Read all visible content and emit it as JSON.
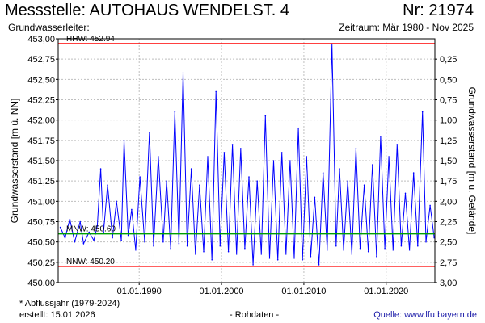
{
  "header": {
    "title": "Messstelle: AUTOHAUS WENDELST. 4",
    "number": "Nr: 21974",
    "aquifer_label": "Grundwasserleiter:",
    "period": "Zeitraum: Mär 1980 - Nov 2025"
  },
  "footer": {
    "footnote": "* Abflussjahr (1979-2024)",
    "created": "erstellt:  15.01.2026",
    "rawdata": "- Rohdaten -",
    "source": "Quelle:  www.lfu.bayern.de"
  },
  "colors": {
    "series": "#0000ff",
    "hhw": "#ff0000",
    "nnw": "#ff0000",
    "mnw": "#00a000",
    "grid": "#bfbfbf"
  },
  "chart_data": {
    "type": "line",
    "ylabel_left": "Grundwasserstand [m ü. NN]",
    "ylabel_right": "Grundwasserstand [m u. Gelände]",
    "ylim": [
      450.0,
      453.0
    ],
    "xlim": [
      "1980-03-01",
      "2025-11-30"
    ],
    "left_ticks": [
      "450,00",
      "450,25",
      "450,50",
      "450,75",
      "451,00",
      "451,25",
      "451,50",
      "451,75",
      "452,00",
      "452,25",
      "452,50",
      "452,75",
      "453,00"
    ],
    "right_ticks": [
      "3,00",
      "2,75",
      "2,50",
      "2,25",
      "2,00",
      "1,75",
      "1,50",
      "1,25",
      "1,00",
      "0,75",
      "0,50",
      "0,25"
    ],
    "x_ticks": [
      {
        "label": "01.01.1990",
        "date": "1990-01-01"
      },
      {
        "label": "01.01.2000",
        "date": "2000-01-01"
      },
      {
        "label": "01.01.2010",
        "date": "2010-01-01"
      },
      {
        "label": "01.01.2020",
        "date": "2020-01-01"
      }
    ],
    "reference_lines": [
      {
        "label": "HHW: 452.94",
        "value": 452.94
      },
      {
        "label": "MNW: 450.60",
        "value": 450.6
      },
      {
        "label": "NNW: 450.20",
        "value": 450.2
      }
    ],
    "grid": true,
    "series": [
      {
        "values": [
          [
            "1980-06-01",
            450.68
          ],
          [
            "1981-01-01",
            450.55
          ],
          [
            "1981-08-01",
            450.78
          ],
          [
            "1982-03-01",
            450.5
          ],
          [
            "1982-11-01",
            450.75
          ],
          [
            "1983-04-01",
            450.48
          ],
          [
            "1983-12-01",
            450.62
          ],
          [
            "1984-07-01",
            450.52
          ],
          [
            "1984-12-01",
            450.7
          ],
          [
            "1985-05-01",
            451.4
          ],
          [
            "1985-09-01",
            450.62
          ],
          [
            "1986-03-01",
            451.2
          ],
          [
            "1986-10-01",
            450.55
          ],
          [
            "1987-04-01",
            451.0
          ],
          [
            "1987-11-01",
            450.52
          ],
          [
            "1988-03-01",
            451.75
          ],
          [
            "1988-09-01",
            450.58
          ],
          [
            "1989-02-01",
            450.9
          ],
          [
            "1989-08-01",
            450.4
          ],
          [
            "1990-02-01",
            451.3
          ],
          [
            "1990-09-01",
            450.5
          ],
          [
            "1991-04-01",
            451.85
          ],
          [
            "1991-10-01",
            450.45
          ],
          [
            "1992-05-01",
            451.55
          ],
          [
            "1992-12-01",
            450.5
          ],
          [
            "1993-05-01",
            451.25
          ],
          [
            "1993-11-01",
            450.42
          ],
          [
            "1994-05-01",
            452.1
          ],
          [
            "1994-11-01",
            450.48
          ],
          [
            "1995-05-01",
            452.58
          ],
          [
            "1995-11-01",
            450.45
          ],
          [
            "1996-05-01",
            451.4
          ],
          [
            "1996-11-01",
            450.35
          ],
          [
            "1997-05-01",
            451.2
          ],
          [
            "1997-11-01",
            450.38
          ],
          [
            "1998-05-01",
            451.55
          ],
          [
            "1998-11-01",
            450.28
          ],
          [
            "1999-05-01",
            452.35
          ],
          [
            "1999-11-01",
            450.45
          ],
          [
            "2000-05-01",
            451.6
          ],
          [
            "2000-11-01",
            450.38
          ],
          [
            "2001-05-01",
            451.7
          ],
          [
            "2001-11-01",
            450.35
          ],
          [
            "2002-05-01",
            451.65
          ],
          [
            "2002-11-01",
            450.42
          ],
          [
            "2003-05-01",
            451.3
          ],
          [
            "2003-11-01",
            450.22
          ],
          [
            "2004-05-01",
            451.25
          ],
          [
            "2004-11-01",
            450.35
          ],
          [
            "2005-05-01",
            452.05
          ],
          [
            "2005-11-01",
            450.3
          ],
          [
            "2006-05-01",
            451.5
          ],
          [
            "2006-11-01",
            450.28
          ],
          [
            "2007-05-01",
            451.6
          ],
          [
            "2007-11-01",
            450.35
          ],
          [
            "2008-05-01",
            451.5
          ],
          [
            "2008-11-01",
            450.3
          ],
          [
            "2009-05-01",
            451.9
          ],
          [
            "2009-11-01",
            450.28
          ],
          [
            "2010-05-01",
            451.55
          ],
          [
            "2010-11-01",
            450.32
          ],
          [
            "2011-05-01",
            451.05
          ],
          [
            "2011-11-01",
            450.22
          ],
          [
            "2012-05-01",
            451.35
          ],
          [
            "2012-11-01",
            450.4
          ],
          [
            "2013-06-01",
            452.94
          ],
          [
            "2013-12-01",
            450.45
          ],
          [
            "2014-05-01",
            451.4
          ],
          [
            "2014-11-01",
            450.4
          ],
          [
            "2015-05-01",
            451.25
          ],
          [
            "2015-11-01",
            450.35
          ],
          [
            "2016-05-01",
            451.65
          ],
          [
            "2016-11-01",
            450.42
          ],
          [
            "2017-05-01",
            451.2
          ],
          [
            "2017-11-01",
            450.38
          ],
          [
            "2018-05-01",
            451.45
          ],
          [
            "2018-11-01",
            450.32
          ],
          [
            "2019-05-01",
            451.8
          ],
          [
            "2019-11-01",
            450.42
          ],
          [
            "2020-05-01",
            451.55
          ],
          [
            "2020-11-01",
            450.4
          ],
          [
            "2021-05-01",
            451.7
          ],
          [
            "2021-11-01",
            450.45
          ],
          [
            "2022-05-01",
            451.1
          ],
          [
            "2022-11-01",
            450.4
          ],
          [
            "2023-05-01",
            451.35
          ],
          [
            "2023-11-01",
            450.45
          ],
          [
            "2024-06-01",
            452.1
          ],
          [
            "2024-11-01",
            450.5
          ],
          [
            "2025-05-01",
            450.95
          ],
          [
            "2025-11-01",
            450.55
          ]
        ]
      }
    ]
  }
}
